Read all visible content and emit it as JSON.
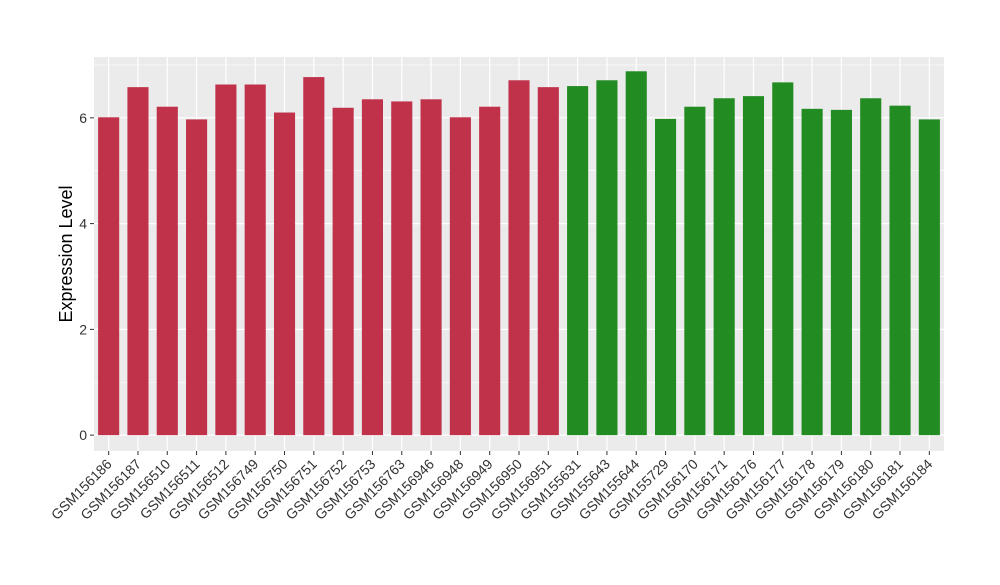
{
  "chart_data": {
    "type": "bar",
    "title": "",
    "xlabel": "",
    "ylabel": "Expression Level",
    "ylim": [
      -0.3,
      7.15
    ],
    "yticks": [
      0,
      2,
      4,
      6
    ],
    "grid": true,
    "legend": "none",
    "categories": [
      "GSM156186",
      "GSM156187",
      "GSM156510",
      "GSM156511",
      "GSM156512",
      "GSM156749",
      "GSM156750",
      "GSM156751",
      "GSM156752",
      "GSM156753",
      "GSM156763",
      "GSM156946",
      "GSM156948",
      "GSM156949",
      "GSM156950",
      "GSM156951",
      "GSM155631",
      "GSM155643",
      "GSM155644",
      "GSM155729",
      "GSM156170",
      "GSM156171",
      "GSM156176",
      "GSM156177",
      "GSM156178",
      "GSM156179",
      "GSM156180",
      "GSM156181",
      "GSM156184"
    ],
    "values": [
      6.01,
      6.58,
      6.21,
      5.97,
      6.63,
      6.63,
      6.1,
      6.77,
      6.19,
      6.35,
      6.31,
      6.35,
      6.01,
      6.21,
      6.71,
      6.58,
      6.6,
      6.71,
      6.88,
      5.98,
      6.21,
      6.37,
      6.41,
      6.67,
      6.17,
      6.15,
      6.37,
      6.23,
      5.97
    ],
    "colors": [
      "#c0314a",
      "#c0314a",
      "#c0314a",
      "#c0314a",
      "#c0314a",
      "#c0314a",
      "#c0314a",
      "#c0314a",
      "#c0314a",
      "#c0314a",
      "#c0314a",
      "#c0314a",
      "#c0314a",
      "#c0314a",
      "#c0314a",
      "#c0314a",
      "#228b22",
      "#228b22",
      "#228b22",
      "#228b22",
      "#228b22",
      "#228b22",
      "#228b22",
      "#228b22",
      "#228b22",
      "#228b22",
      "#228b22",
      "#228b22",
      "#228b22"
    ],
    "panel_background": "#ebebeb",
    "grid_color": "#ffffff"
  }
}
